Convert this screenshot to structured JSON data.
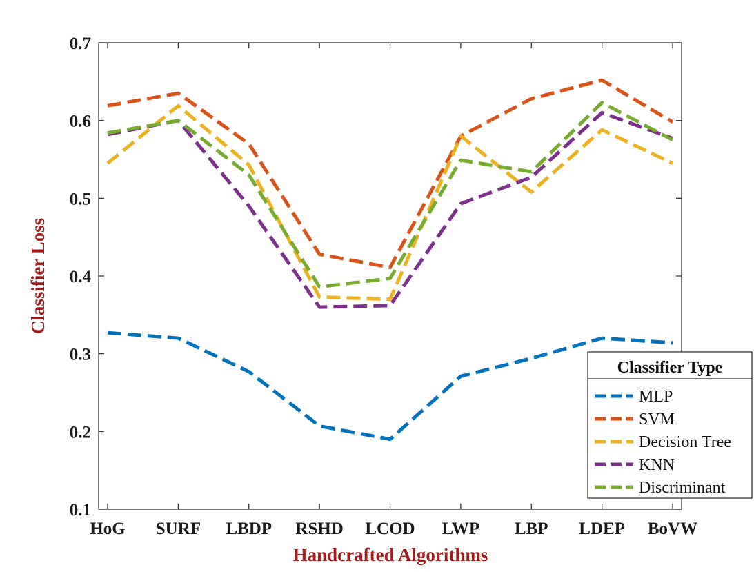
{
  "chart_data": {
    "type": "line",
    "title": "",
    "xlabel": "Handcrafted Algorithms",
    "ylabel": "Classifier Loss",
    "ylim": [
      0.1,
      0.7
    ],
    "yticks": [
      "0.1",
      "0.2",
      "0.3",
      "0.4",
      "0.5",
      "0.6",
      "0.7"
    ],
    "categories": [
      "HoG",
      "SURF",
      "LBDP",
      "RSHD",
      "LCOD",
      "LWP",
      "LBP",
      "LDEP",
      "BoVW"
    ],
    "legend": {
      "title": "Classifier Type",
      "placement": "bottom-right"
    },
    "series": [
      {
        "name": "MLP",
        "color": "#0072BD",
        "values": [
          0.327,
          0.32,
          0.277,
          0.207,
          0.19,
          0.271,
          0.294,
          0.32,
          0.314
        ]
      },
      {
        "name": "SVM",
        "color": "#D95319",
        "values": [
          0.619,
          0.635,
          0.57,
          0.428,
          0.411,
          0.58,
          0.628,
          0.652,
          0.598
        ]
      },
      {
        "name": "Decision Tree",
        "color": "#EDB120",
        "values": [
          0.545,
          0.619,
          0.543,
          0.373,
          0.37,
          0.58,
          0.508,
          0.588,
          0.545
        ]
      },
      {
        "name": "KNN",
        "color": "#7E2F8E",
        "values": [
          0.582,
          0.6,
          0.49,
          0.36,
          0.362,
          0.493,
          0.527,
          0.61,
          0.577
        ]
      },
      {
        "name": "Discriminant",
        "color": "#77AC30",
        "values": [
          0.584,
          0.6,
          0.53,
          0.386,
          0.397,
          0.549,
          0.534,
          0.623,
          0.575
        ]
      }
    ]
  }
}
